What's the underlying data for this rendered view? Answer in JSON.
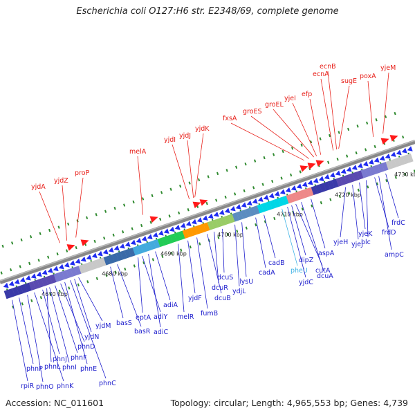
{
  "title": "Escherichia coli O127:H6 str. E2348/69, complete genome",
  "accession": "Accession: NC_011601",
  "summary": "Topology: circular; Length: 4,965,553 bp; Genes: 4,739",
  "colors": {
    "forward_label": "#e8201a",
    "reverse_label": "#1c1ccc",
    "highlight_label": "#42b4e6",
    "forward_arrow": "#ff1a1a",
    "reverse_arrow": "#1f2cf0",
    "backbone": "#888888",
    "tick": "#2f8a2f"
  },
  "tick_labels": [
    "4670 kbp",
    "4680 kbp",
    "4690 kbp",
    "4700 kbp",
    "4710 kbp",
    "4720 kbp",
    "4730 kbp"
  ],
  "forward_genes": [
    "yjdA",
    "yjdZ",
    "proP",
    "melA",
    "yjdI",
    "yjdJ",
    "yjdK",
    "fxsA",
    "groES",
    "groEL",
    "yjeI",
    "efp",
    "ecnA",
    "ecnB",
    "sugE",
    "poxA",
    "yjeM"
  ],
  "reverse_genes": [
    "rpiR",
    "phnP",
    "phnO",
    "phnK",
    "phnJ",
    "phnL",
    "phnI",
    "phnF",
    "phnD",
    "phnE",
    "phnC",
    "yjdN",
    "yjdM",
    "basS",
    "basR",
    "eptA",
    "adiY",
    "adiC",
    "adiA",
    "melR",
    "yjdF",
    "fumB",
    "dcuB",
    "dcuR",
    "dcuS",
    "ydjL",
    "lysU",
    "cadA",
    "cadB",
    "pheU",
    "yjdC",
    "dipZ",
    "cutA",
    "dcuA",
    "aspA",
    "yjeH",
    "yjeJ",
    "yjeK",
    "blc",
    "frdD",
    "ampC",
    "frdC"
  ]
}
